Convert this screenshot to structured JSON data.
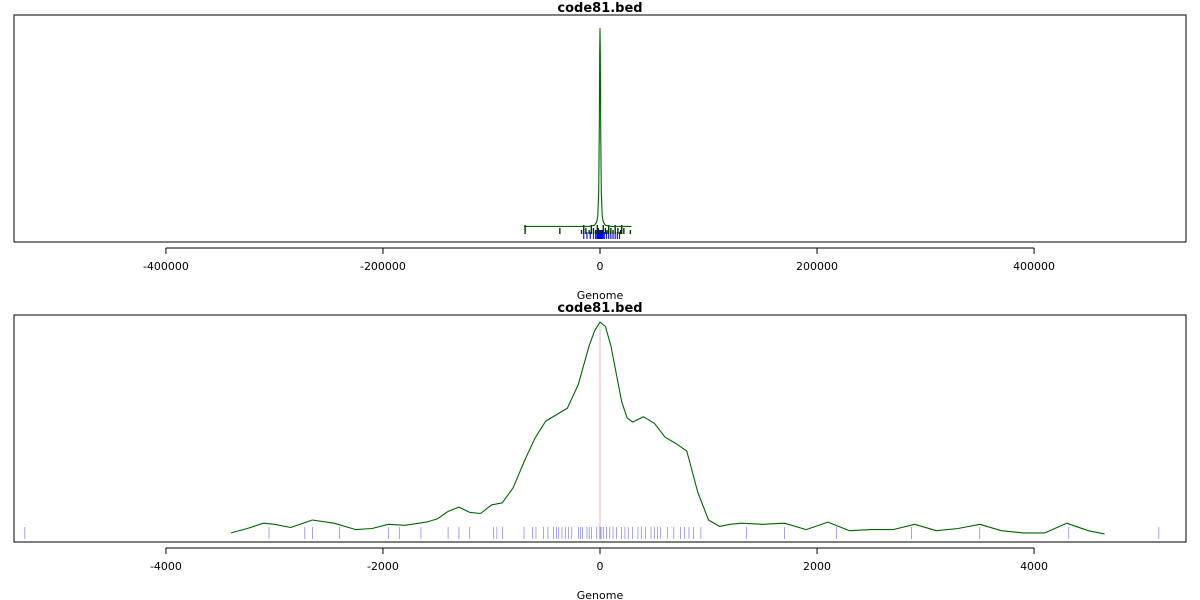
{
  "chart_data": [
    {
      "type": "line",
      "title": "code81.bed",
      "xlabel": "Genome",
      "ylabel": "",
      "xlim": [
        -540000,
        540000
      ],
      "ylim": [
        0,
        1.0
      ],
      "grid": false,
      "xticks": [
        -400000,
        -200000,
        0,
        200000,
        400000
      ],
      "xtick_labels": [
        "-400000",
        "-200000",
        "0",
        "200000",
        "400000"
      ],
      "colors": {
        "density": "#006400",
        "rug": "#0000ff",
        "peaks": "#003300"
      },
      "series": [
        {
          "x": [
            -70000,
            -68500,
            -20000,
            -10000,
            -5000,
            -3000,
            -2000,
            -1200,
            -600,
            -300,
            0,
            300,
            600,
            1200,
            2000,
            3000,
            5000,
            10000,
            20000,
            28000,
            29000
          ],
          "values": [
            0.04,
            0.04,
            0.04,
            0.04,
            0.045,
            0.06,
            0.09,
            0.2,
            0.5,
            0.85,
            0.96,
            0.85,
            0.5,
            0.2,
            0.09,
            0.06,
            0.045,
            0.04,
            0.04,
            0.04,
            0.04
          ]
        }
      ],
      "peaks": [
        -69000,
        -37000,
        -17000,
        -15000,
        -13000,
        -10000,
        -8000,
        -6000,
        -4000,
        -2500,
        -1500,
        1500,
        3000,
        5000,
        6500,
        8000,
        10000,
        12000,
        14000,
        16500,
        19000,
        20000,
        22000,
        28000
      ],
      "rug": [
        -15000,
        -12000,
        -9000,
        -6000,
        -4000,
        -2500,
        -1500,
        -800,
        -400,
        0,
        400,
        800,
        1500,
        2500,
        4000,
        6000,
        8000,
        10000,
        12000,
        14000,
        16000,
        18000
      ]
    },
    {
      "type": "line",
      "title": "code81.bed",
      "xlabel": "Genome",
      "ylabel": "",
      "xlim": [
        -5400,
        5400
      ],
      "ylim": [
        0,
        1.0
      ],
      "grid": false,
      "xticks": [
        -4000,
        -2000,
        0,
        2000,
        4000
      ],
      "xtick_labels": [
        "-4000",
        "-2000",
        "0",
        "2000",
        "4000"
      ],
      "colors": {
        "density": "#006400",
        "rug": "#0000ff",
        "zero_line": "#ddbbcc"
      },
      "series": [
        {
          "x": [
            -3400,
            -3250,
            -3100,
            -3000,
            -2850,
            -2650,
            -2450,
            -2250,
            -2100,
            -1950,
            -1800,
            -1600,
            -1500,
            -1400,
            -1300,
            -1200,
            -1100,
            -1000,
            -900,
            -800,
            -700,
            -600,
            -500,
            -400,
            -300,
            -200,
            -100,
            -50,
            0,
            50,
            100,
            150,
            200,
            250,
            300,
            400,
            500,
            600,
            700,
            800,
            900,
            1000,
            1100,
            1200,
            1300,
            1500,
            1700,
            1900,
            2100,
            2300,
            2500,
            2700,
            2900,
            3100,
            3300,
            3500,
            3700,
            3900,
            4100,
            4300,
            4500,
            4650
          ],
          "values": [
            0.01,
            0.03,
            0.055,
            0.05,
            0.035,
            0.07,
            0.055,
            0.025,
            0.03,
            0.05,
            0.045,
            0.06,
            0.075,
            0.11,
            0.13,
            0.105,
            0.1,
            0.14,
            0.15,
            0.22,
            0.34,
            0.45,
            0.53,
            0.56,
            0.59,
            0.7,
            0.88,
            0.95,
            0.99,
            0.97,
            0.88,
            0.75,
            0.62,
            0.545,
            0.525,
            0.55,
            0.52,
            0.455,
            0.425,
            0.39,
            0.2,
            0.07,
            0.04,
            0.05,
            0.055,
            0.05,
            0.055,
            0.025,
            0.06,
            0.02,
            0.025,
            0.025,
            0.05,
            0.02,
            0.03,
            0.05,
            0.02,
            0.01,
            0.01,
            0.055,
            0.02,
            0.005
          ]
        }
      ],
      "rug": [
        -5300,
        -3050,
        -2720,
        -2650,
        -2400,
        -1950,
        -1850,
        -1650,
        -1400,
        -1300,
        -1200,
        -980,
        -950,
        -900,
        -700,
        -620,
        -590,
        -520,
        -480,
        -430,
        -400,
        -380,
        -350,
        -320,
        -290,
        -260,
        -200,
        -180,
        -160,
        -120,
        -100,
        -80,
        -30,
        0,
        10,
        30,
        60,
        90,
        120,
        150,
        200,
        230,
        260,
        300,
        350,
        380,
        420,
        470,
        500,
        530,
        560,
        620,
        680,
        740,
        780,
        820,
        860,
        930,
        1350,
        1700,
        2180,
        2870,
        3500,
        4320,
        5150
      ]
    }
  ]
}
